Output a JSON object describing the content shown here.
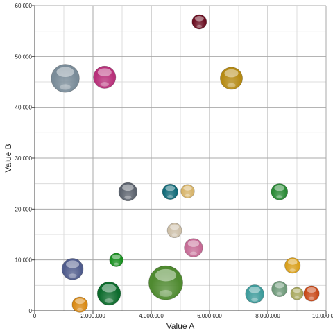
{
  "chart_data": {
    "type": "scatter",
    "variant": "bubble",
    "xlabel": "Value A",
    "ylabel": "Value B",
    "xlim": [
      0,
      10000000
    ],
    "ylim": [
      0,
      60000
    ],
    "x_ticks": [
      0,
      2000000,
      4000000,
      6000000,
      8000000,
      10000000
    ],
    "x_tick_labels": [
      "0",
      "2,000,000",
      "4,000,000",
      "6,000,000",
      "8,000,000",
      "10,000,000"
    ],
    "y_ticks": [
      0,
      10000,
      20000,
      30000,
      40000,
      50000,
      60000
    ],
    "y_tick_labels": [
      "0",
      "10,000",
      "20,000",
      "30,000",
      "40,000",
      "50,000",
      "60,000"
    ],
    "grid": true,
    "legend": "none",
    "points": [
      {
        "x": 5650000,
        "y": 56800,
        "size": 0.75,
        "color": "#6b0f22"
      },
      {
        "x": 1050000,
        "y": 45700,
        "size": 1.45,
        "color": "#7a8c99"
      },
      {
        "x": 2400000,
        "y": 45900,
        "size": 1.15,
        "color": "#b8307a"
      },
      {
        "x": 6750000,
        "y": 45700,
        "size": 1.15,
        "color": "#b58a14"
      },
      {
        "x": 3200000,
        "y": 23400,
        "size": 0.95,
        "color": "#5c636e"
      },
      {
        "x": 4650000,
        "y": 23400,
        "size": 0.8,
        "color": "#116a78"
      },
      {
        "x": 5250000,
        "y": 23500,
        "size": 0.7,
        "color": "#d7b46a"
      },
      {
        "x": 8400000,
        "y": 23400,
        "size": 0.85,
        "color": "#2a8a36"
      },
      {
        "x": 4800000,
        "y": 15800,
        "size": 0.75,
        "color": "#cdbfa8"
      },
      {
        "x": 5450000,
        "y": 12400,
        "size": 0.95,
        "color": "#c56b95"
      },
      {
        "x": 1300000,
        "y": 8200,
        "size": 1.1,
        "color": "#505c8c"
      },
      {
        "x": 2800000,
        "y": 10000,
        "size": 0.7,
        "color": "#199020"
      },
      {
        "x": 8850000,
        "y": 8900,
        "size": 0.8,
        "color": "#d9a01d"
      },
      {
        "x": 4500000,
        "y": 5500,
        "size": 1.75,
        "color": "#4f8a30"
      },
      {
        "x": 2550000,
        "y": 3400,
        "size": 1.2,
        "color": "#0c6b2c"
      },
      {
        "x": 1550000,
        "y": 1200,
        "size": 0.8,
        "color": "#d98a16"
      },
      {
        "x": 7550000,
        "y": 3300,
        "size": 0.95,
        "color": "#3f9c9c"
      },
      {
        "x": 8400000,
        "y": 4300,
        "size": 0.8,
        "color": "#6f9a7a"
      },
      {
        "x": 9000000,
        "y": 3400,
        "size": 0.65,
        "color": "#a8a85e"
      },
      {
        "x": 9500000,
        "y": 3400,
        "size": 0.8,
        "color": "#c94a1a"
      }
    ]
  }
}
